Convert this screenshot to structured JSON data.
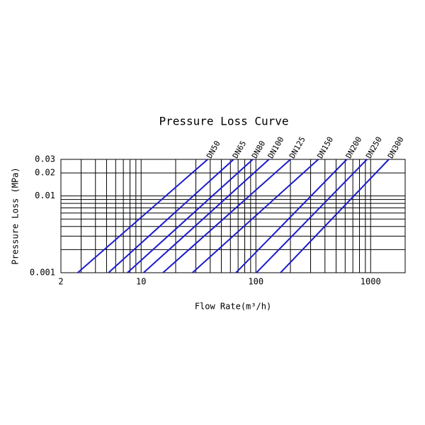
{
  "chart_data": {
    "type": "line",
    "title": "Pressure Loss Curve",
    "x_label": "Flow Rate(m³/h)",
    "y_label": "Pressure Loss (MPa)",
    "log_x": true,
    "log_y": true,
    "grid": true,
    "xlim": [
      2,
      2000
    ],
    "xticks": [
      2,
      10,
      100,
      1000
    ],
    "xminor": [
      3,
      4,
      5,
      6,
      7,
      8,
      9,
      20,
      30,
      40,
      50,
      60,
      70,
      80,
      90,
      200,
      300,
      400,
      500,
      600,
      700,
      800,
      900
    ],
    "ylim": [
      0.001,
      0.03
    ],
    "yticks": [
      0.001,
      0.01,
      0.02,
      0.03
    ],
    "yminor": [
      0.002,
      0.003,
      0.004,
      0.005,
      0.006,
      0.007,
      0.008,
      0.009
    ],
    "series": [
      {
        "name": "DN50",
        "color": "#1c1ccc",
        "x": [
          2.8,
          38
        ],
        "values": [
          0.001,
          0.03
        ]
      },
      {
        "name": "DN65",
        "color": "#1c1ccc",
        "x": [
          5.2,
          64
        ],
        "values": [
          0.001,
          0.03
        ]
      },
      {
        "name": "DN80",
        "color": "#1c1ccc",
        "x": [
          7.6,
          94
        ],
        "values": [
          0.001,
          0.03
        ]
      },
      {
        "name": "DN100",
        "color": "#1c1ccc",
        "x": [
          10.5,
          130
        ],
        "values": [
          0.001,
          0.03
        ]
      },
      {
        "name": "DN125",
        "color": "#1c1ccc",
        "x": [
          15.5,
          200
        ],
        "values": [
          0.001,
          0.03
        ]
      },
      {
        "name": "DN150",
        "color": "#1c1ccc",
        "x": [
          28,
          350
        ],
        "values": [
          0.001,
          0.03
        ]
      },
      {
        "name": "DN200",
        "color": "#1c1ccc",
        "x": [
          67,
          620
        ],
        "values": [
          0.001,
          0.03
        ]
      },
      {
        "name": "DN250",
        "color": "#1c1ccc",
        "x": [
          101,
          930
        ],
        "values": [
          0.001,
          0.03
        ]
      },
      {
        "name": "DN300",
        "color": "#1c1ccc",
        "x": [
          164,
          1440
        ],
        "values": [
          0.001,
          0.03
        ]
      }
    ]
  }
}
